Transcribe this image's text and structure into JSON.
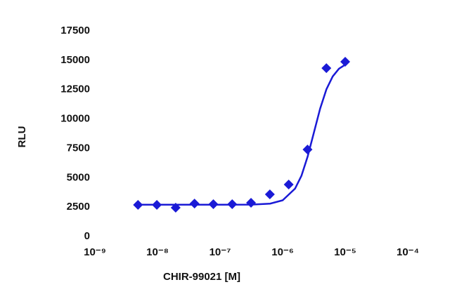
{
  "chart_data": {
    "type": "scatter",
    "x_label": "CHIR-99021 [M]",
    "y_label": "RLU",
    "log_x": true,
    "xlim": [
      1e-09,
      0.0001
    ],
    "xticks": [
      {
        "value": 1e-09,
        "label": "10⁻⁹"
      },
      {
        "value": 1e-08,
        "label": "10⁻⁸"
      },
      {
        "value": 1e-07,
        "label": "10⁻⁷"
      },
      {
        "value": 1e-06,
        "label": "10⁻⁶"
      },
      {
        "value": 1e-05,
        "label": "10⁻⁵"
      },
      {
        "value": 0.0001,
        "label": "10⁻⁴"
      }
    ],
    "ylim": [
      0,
      17500
    ],
    "yticks": [
      0,
      2500,
      5000,
      7500,
      10000,
      12500,
      15000,
      17500
    ],
    "color": "#1a1ad6",
    "x": [
      4.8828125e-09,
      9.765625e-09,
      1.953125e-08,
      3.90625e-08,
      7.8125e-08,
      1.5625e-07,
      3.125e-07,
      6.25e-07,
      1.25e-06,
      2.5e-06,
      5e-06,
      1e-05
    ],
    "values": [
      2690,
      2690,
      2450,
      2800,
      2750,
      2750,
      2870,
      3580,
      4420,
      7400,
      14330,
      14870
    ],
    "fit": {
      "x": [
        5e-09,
        1e-07,
        3.16e-07,
        6.31e-07,
        1e-06,
        1.58e-06,
        2e-06,
        2.51e-06,
        3.16e-06,
        3.98e-06,
        5.01e-06,
        6.31e-06,
        7.94e-06,
        1e-05
      ],
      "values": [
        2700,
        2700,
        2712,
        2797,
        3078,
        4074,
        5170,
        6808,
        8850,
        10892,
        12530,
        13626,
        14274,
        14622
      ]
    }
  }
}
